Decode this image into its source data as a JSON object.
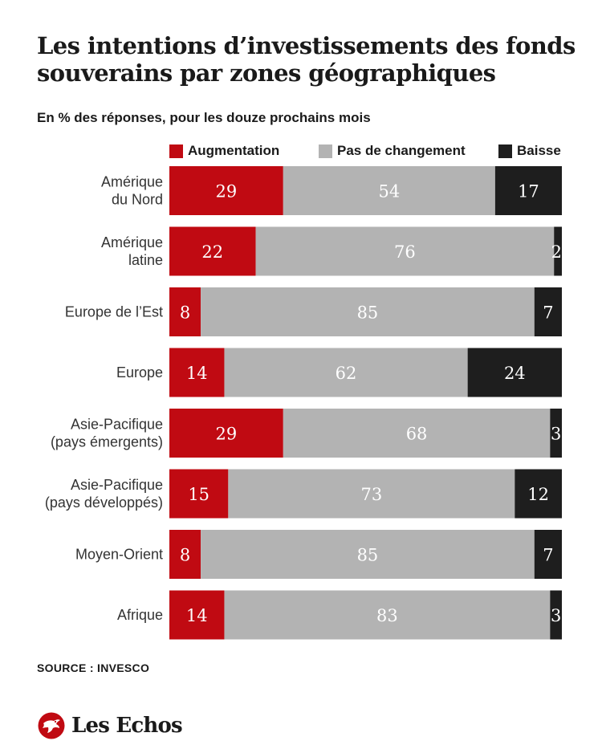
{
  "title": "Les intentions d’investissements des fonds souverains par zones géographiques",
  "subtitle": "En % des réponses, pour les douze prochains mois",
  "source": "SOURCE : INVESCO",
  "brand": {
    "name": "Les Echos",
    "logo_icon": "les-echos-logo-icon"
  },
  "colors": {
    "augmentation": "#c00a12",
    "pas_de_changement": "#b3b3b3",
    "baisse": "#1e1e1e"
  },
  "chart_data": {
    "type": "bar",
    "orientation": "horizontal",
    "stacked": true,
    "legend_position": "top",
    "grid": false,
    "xlim": [
      0,
      100
    ],
    "categories": [
      [
        "Amérique",
        "du Nord"
      ],
      [
        "Amérique",
        "latine"
      ],
      [
        "Europe de l’Est"
      ],
      [
        "Europe"
      ],
      [
        "Asie-Pacifique",
        "(pays émergents)"
      ],
      [
        "Asie-Pacifique",
        "(pays développés)"
      ],
      [
        "Moyen-Orient"
      ],
      [
        "Afrique"
      ]
    ],
    "series": [
      {
        "name": "Augmentation",
        "color": "#c00a12",
        "label_color": "#ffffff",
        "values": [
          29,
          22,
          8,
          14,
          29,
          15,
          8,
          14
        ]
      },
      {
        "name": "Pas de changement",
        "color": "#b3b3b3",
        "label_color": "#ffffff",
        "values": [
          54,
          76,
          85,
          62,
          68,
          73,
          85,
          83
        ]
      },
      {
        "name": "Baisse",
        "color": "#1e1e1e",
        "label_color": "#ffffff",
        "values": [
          17,
          2,
          7,
          24,
          3,
          12,
          7,
          3
        ]
      }
    ]
  }
}
